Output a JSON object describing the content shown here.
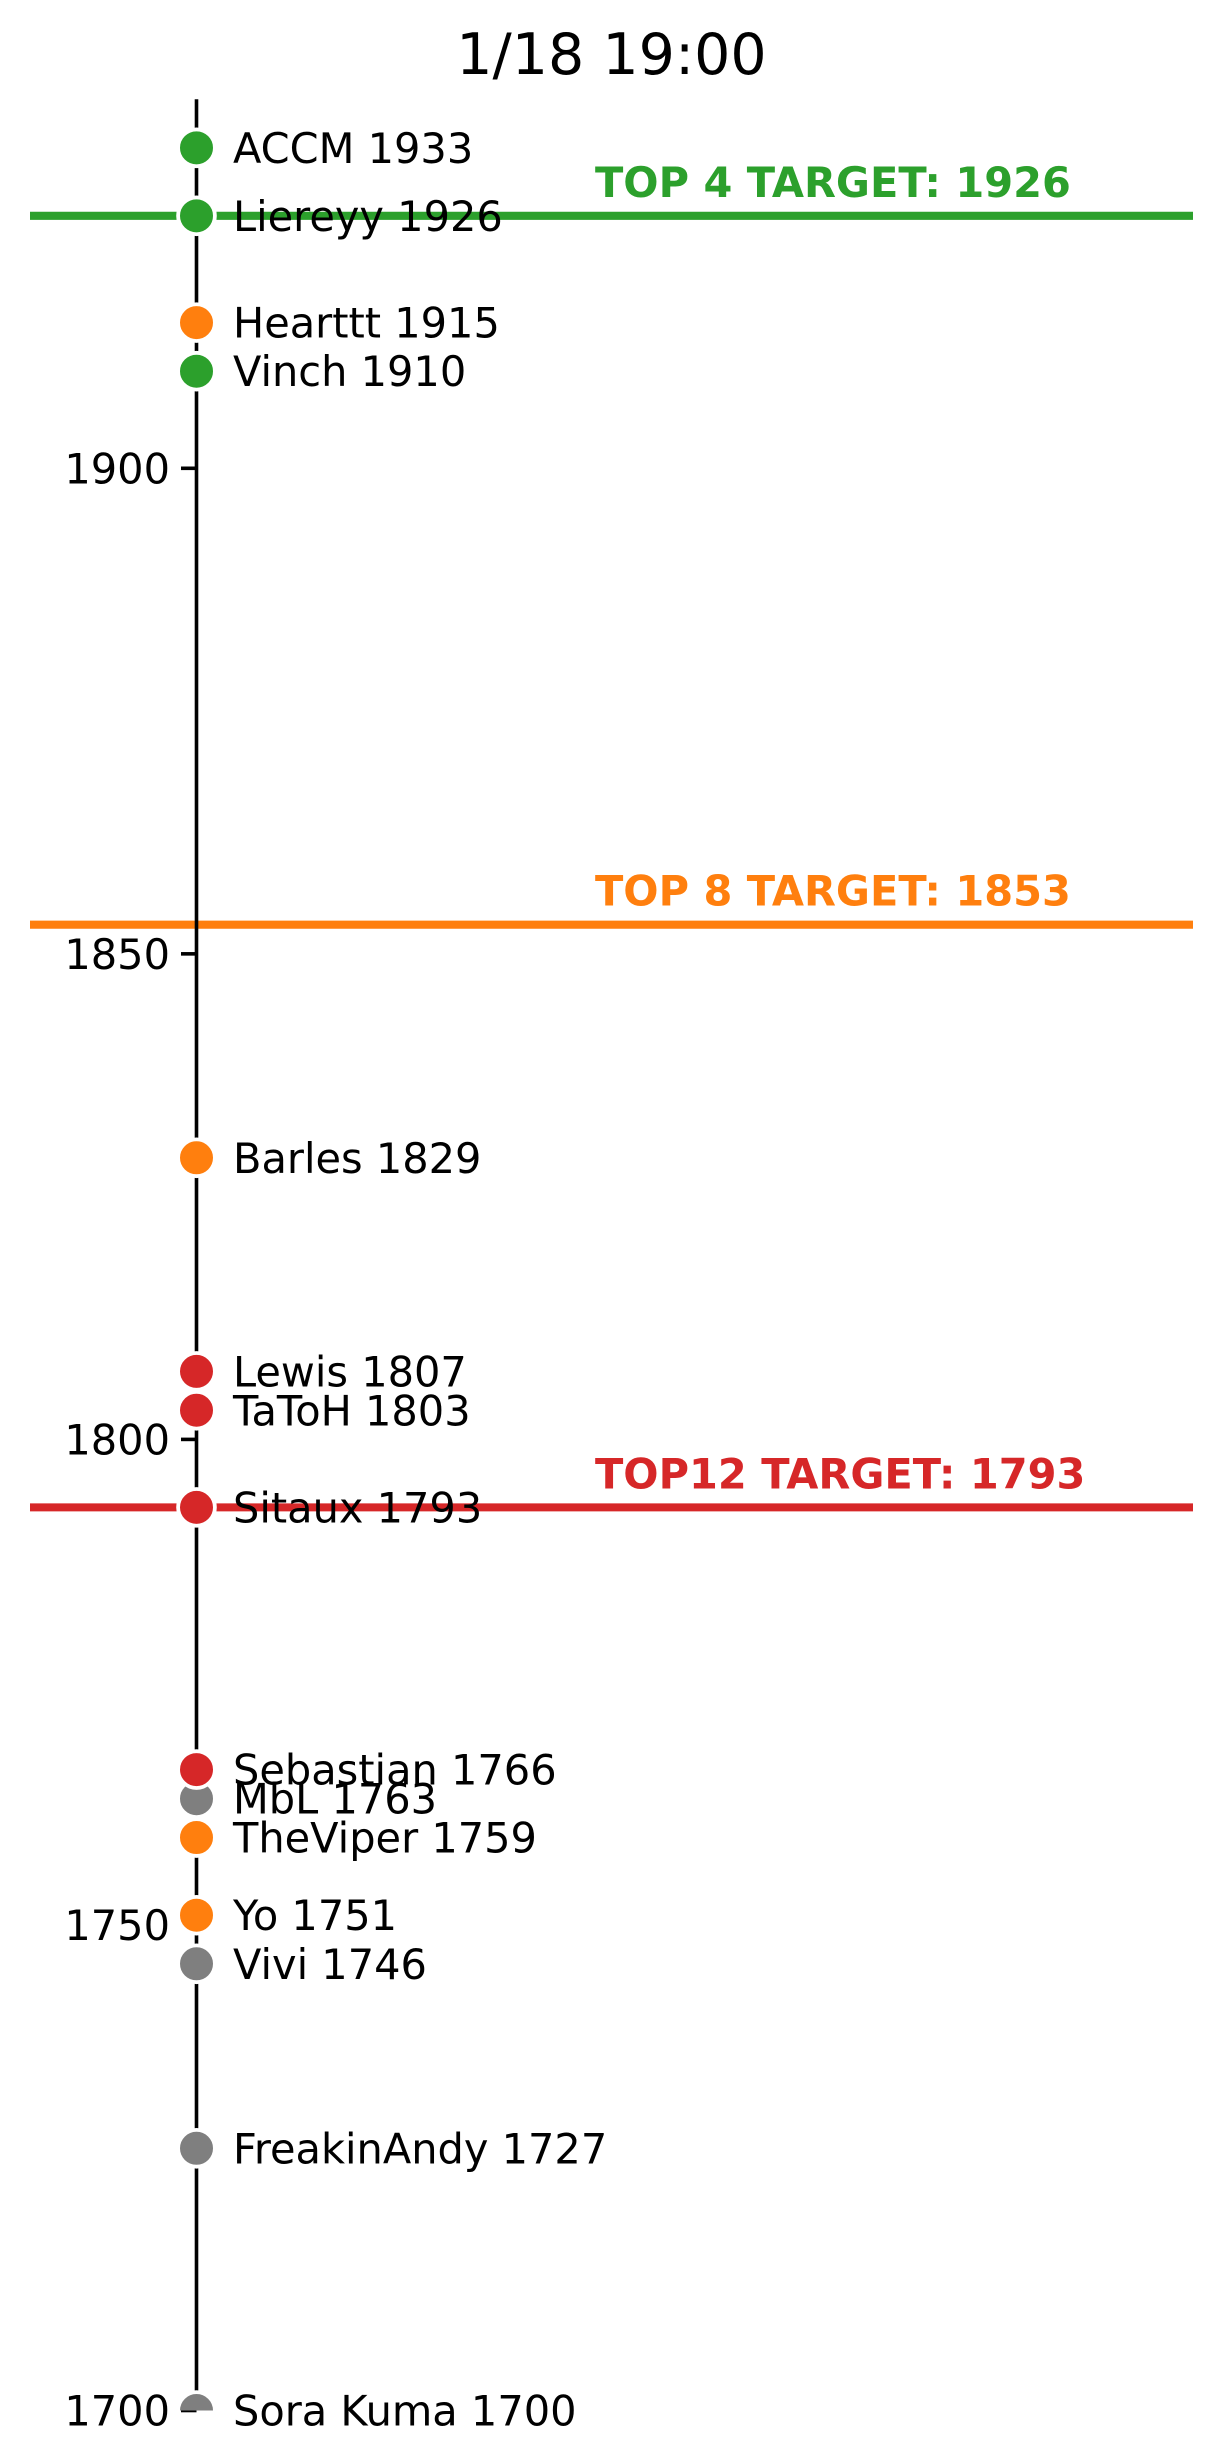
{
  "chart_data": {
    "type": "scatter",
    "title": "1/18 19:00",
    "orientation": "vertical_number_line",
    "ylim": [
      1700,
      1938
    ],
    "yticks": [
      1900,
      1850,
      1800,
      1750,
      1700
    ],
    "grid": false,
    "legend": "none",
    "palette": {
      "green": "#2ca02c",
      "orange": "#ff7f0e",
      "red": "#d62728",
      "gray": "#7f7f7f",
      "axis": "#000000",
      "text": "#000000"
    },
    "targets": [
      {
        "label": "TOP 4 TARGET: 1926",
        "value": 1926,
        "color": "green"
      },
      {
        "label": "TOP 8 TARGET: 1853",
        "value": 1853,
        "color": "orange"
      },
      {
        "label": "TOP12 TARGET: 1793",
        "value": 1793,
        "color": "red"
      }
    ],
    "players": [
      {
        "name": "ACCM",
        "rating": 1933,
        "label": "ACCM 1933",
        "color": "green"
      },
      {
        "name": "Liereyy",
        "rating": 1926,
        "label": "Liereyy 1926",
        "color": "green"
      },
      {
        "name": "Hearttt",
        "rating": 1915,
        "label": "Hearttt 1915",
        "color": "orange"
      },
      {
        "name": "Vinch",
        "rating": 1910,
        "label": "Vinch 1910",
        "color": "green"
      },
      {
        "name": "Barles",
        "rating": 1829,
        "label": "Barles 1829",
        "color": "orange"
      },
      {
        "name": "Lewis",
        "rating": 1807,
        "label": "Lewis 1807",
        "color": "red"
      },
      {
        "name": "TaToH",
        "rating": 1803,
        "label": "TaToH 1803",
        "color": "red"
      },
      {
        "name": "Sitaux",
        "rating": 1793,
        "label": "Sitaux 1793",
        "color": "red"
      },
      {
        "name": "Sebastian",
        "rating": 1766,
        "label": "Sebastian 1766",
        "color": "red"
      },
      {
        "name": "MbL",
        "rating": 1763,
        "label": "MbL 1763",
        "color": "gray"
      },
      {
        "name": "TheViper",
        "rating": 1759,
        "label": "TheViper 1759",
        "color": "orange"
      },
      {
        "name": "Yo",
        "rating": 1751,
        "label": "Yo 1751",
        "color": "orange"
      },
      {
        "name": "Vivi",
        "rating": 1746,
        "label": "Vivi 1746",
        "color": "gray"
      },
      {
        "name": "FreakinAndy",
        "rating": 1727,
        "label": "FreakinAndy 1727",
        "color": "gray"
      },
      {
        "name": "Sora Kuma",
        "rating": 1700,
        "label": "Sora Kuma 1700",
        "color": "gray"
      }
    ]
  }
}
